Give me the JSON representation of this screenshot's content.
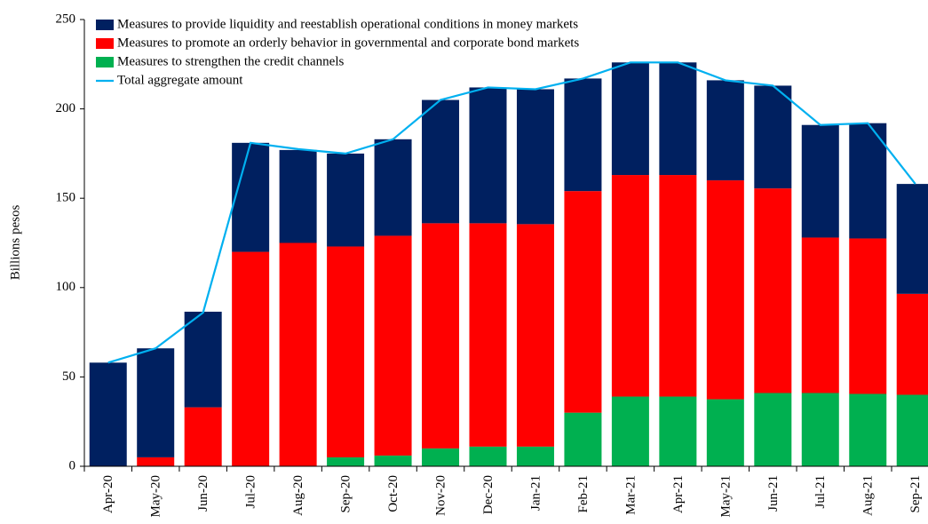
{
  "chart_data": {
    "type": "stacked-bar-line",
    "y_label": "Billions pesos",
    "categories": [
      "Apr-20",
      "May-20",
      "Jun-20",
      "Jul-20",
      "Aug-20",
      "Sep-20",
      "Oct-20",
      "Nov-20",
      "Dec-20",
      "Jan-21",
      "Feb-21",
      "Mar-21",
      "Apr-21",
      "May-21",
      "Jun-21",
      "Jul-21",
      "Aug-21",
      "Sep-21"
    ],
    "series": [
      {
        "name": "Measures to provide liquidity and reestablish operational conditions in money markets",
        "color": "#002060",
        "values": [
          58,
          61,
          53.5,
          61,
          52,
          52,
          54,
          69,
          76,
          75.5,
          63,
          63,
          63,
          56,
          57.5,
          63,
          64.5,
          61.5
        ]
      },
      {
        "name": "Measures to promote an orderly behavior in governmental and corporate bond markets",
        "color": "#ff0000",
        "values": [
          0,
          5,
          33,
          120,
          125,
          118,
          123,
          126,
          125,
          124.5,
          124,
          124,
          124,
          122.5,
          114.5,
          87,
          87,
          56.5
        ]
      },
      {
        "name": "Measures to strengthen the credit channels",
        "color": "#00b050",
        "values": [
          0,
          0,
          0,
          0,
          0,
          5,
          6,
          10,
          11,
          11,
          30,
          39,
          39,
          37.5,
          41,
          41,
          40.5,
          40
        ]
      },
      {
        "name": "Total aggregate amount",
        "color": "#00b0f0",
        "type": "line",
        "values": [
          58,
          66,
          86,
          181,
          177.5,
          175,
          183,
          205,
          212,
          211,
          217,
          226,
          226,
          216,
          213,
          191,
          192,
          158
        ]
      }
    ],
    "ylim": [
      0,
      250
    ],
    "yticks": [
      0,
      50,
      100,
      150,
      200,
      250
    ],
    "legend": "top-left"
  }
}
